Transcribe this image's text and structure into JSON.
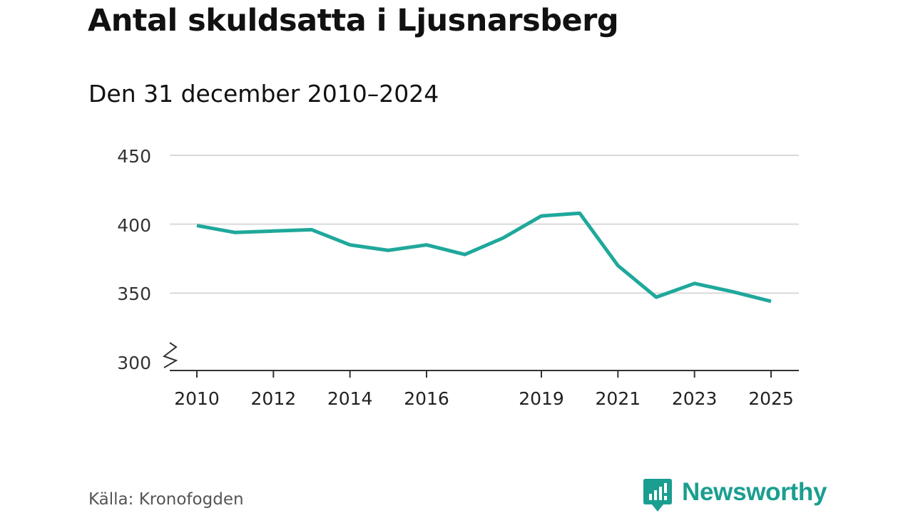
{
  "chart_data": {
    "type": "line",
    "title": "Antal skuldsatta i Ljusnarsberg",
    "subtitle": "Den 31 december 2010–2024",
    "xlabel": "",
    "ylabel": "",
    "x": [
      2010,
      2011,
      2012,
      2013,
      2014,
      2015,
      2016,
      2017,
      2018,
      2019,
      2020,
      2021,
      2022,
      2023,
      2024,
      2025
    ],
    "series": [
      {
        "name": "Antal skuldsatta",
        "color": "#1fa89b",
        "values": [
          399,
          394,
          395,
          396,
          385,
          381,
          385,
          378,
          390,
          406,
          408,
          370,
          347,
          357,
          351,
          344
        ]
      }
    ],
    "ylim": [
      300,
      450
    ],
    "yticks": [
      "450",
      "400",
      "350",
      "300"
    ],
    "xticks": [
      "2010",
      "2012",
      "2014",
      "2016",
      "2019",
      "2021",
      "2023",
      "2025"
    ],
    "axis_break": true,
    "grid": true,
    "gridColor": "#d9d9d9",
    "axisColor": "#333333"
  },
  "footer": {
    "source": "Källa: Kronofogden",
    "brand": "Newsworthy",
    "brandColor": "#1a9e90"
  }
}
